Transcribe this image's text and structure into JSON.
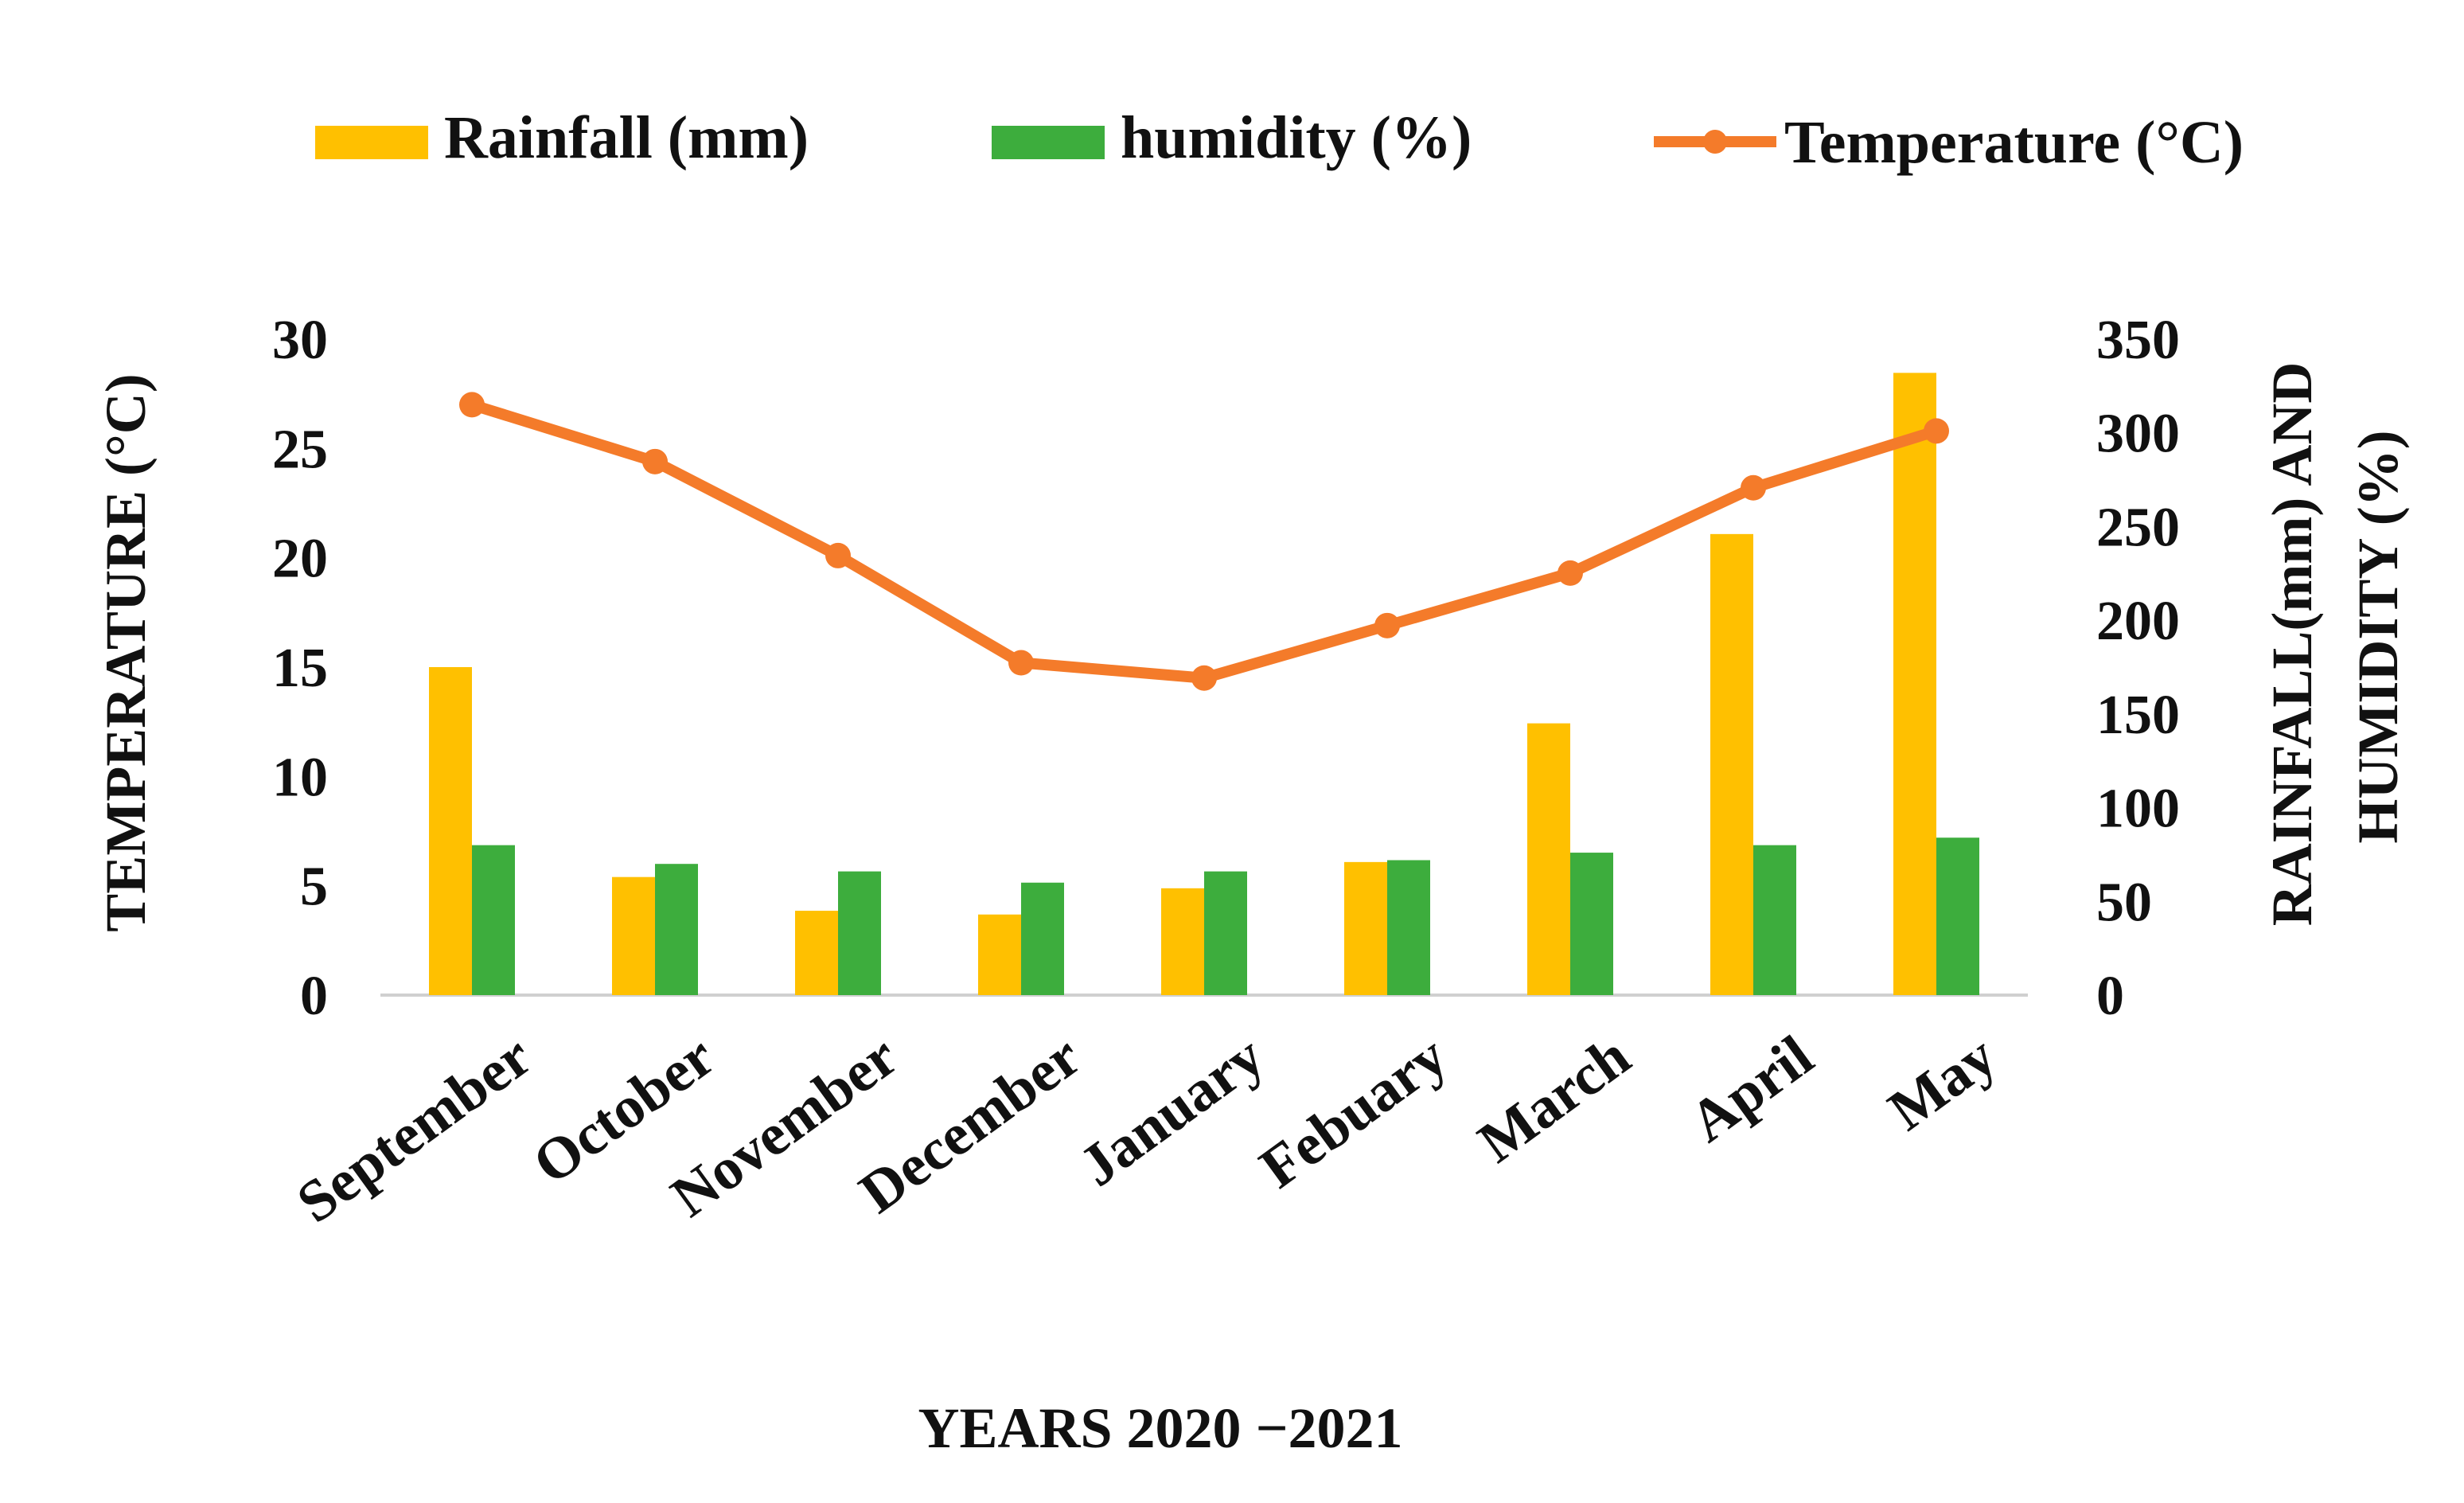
{
  "chart_data": {
    "type": "bar",
    "title": "",
    "categories": [
      "September",
      "October",
      "November",
      "December",
      "January",
      "Febuary",
      "March",
      "April",
      "May"
    ],
    "series": [
      {
        "name": "Rainfall (mm)",
        "kind": "bar",
        "axis": "right",
        "color": "#FFC000",
        "values": [
          175,
          63,
          45,
          43,
          57,
          71,
          145,
          246,
          332
        ]
      },
      {
        "name": "humidity (%)",
        "kind": "bar",
        "axis": "right",
        "color": "#3DAD3D",
        "values": [
          80,
          70,
          66,
          60,
          66,
          72,
          76,
          80,
          84
        ]
      },
      {
        "name": "Temperature (°C)",
        "kind": "line",
        "axis": "left",
        "color": "#F47B2A",
        "values": [
          27,
          24.4,
          20.1,
          15.2,
          14.5,
          16.9,
          19.3,
          23.2,
          25.8
        ]
      }
    ],
    "xlabel": "YEARS 2020 −2021",
    "ylabel_left": "TEMPERATURE (°C)",
    "ylabel_right": [
      "RAINFALL(mm) AND",
      "HUMIDITY (%)"
    ],
    "ylim_left": [
      0,
      30
    ],
    "ylim_right": [
      0,
      350
    ],
    "yticks_left": [
      "0",
      "5",
      "10",
      "15",
      "20",
      "25",
      "30"
    ],
    "yticks_right": [
      "0",
      "50",
      "100",
      "150",
      "200",
      "250",
      "300",
      "350"
    ],
    "grid": false,
    "legend_position": "top"
  }
}
